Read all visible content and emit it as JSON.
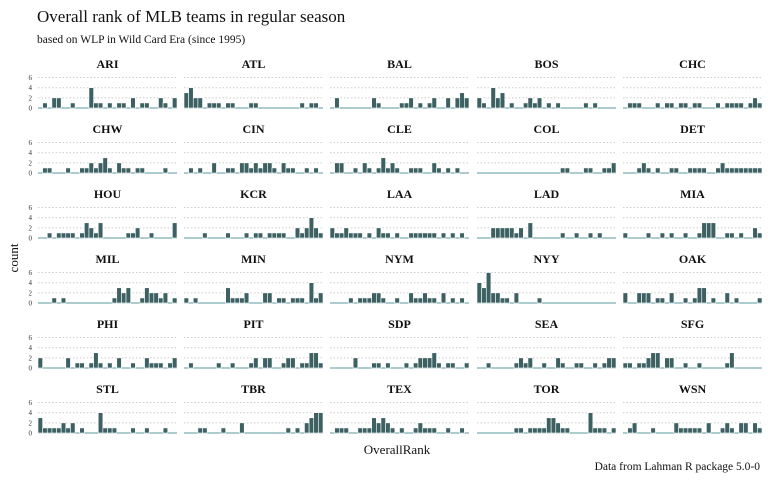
{
  "chart_data": {
    "type": "bar",
    "title": "Overall rank of MLB teams in regular season",
    "subtitle": "based on WLP in Wild Card Era (since 1995)",
    "xlabel": "OverallRank",
    "ylabel": "count",
    "caption": "Data from Lahman R package 5.0-0",
    "x_range": [
      1,
      30
    ],
    "y_ticks": [
      0,
      2,
      4,
      6
    ],
    "ylim": [
      0,
      6.5
    ],
    "grid": "horizontal dotted",
    "colors": {
      "bar": "#3d6163",
      "bar_edge": "#ffffff",
      "baseline": "#5b9aa0",
      "grid": "#cccccc"
    },
    "facets": [
      {
        "team": "ARI",
        "counts": [
          0,
          1,
          0,
          2,
          2,
          0,
          0,
          1,
          0,
          0,
          0,
          4,
          1,
          1,
          0,
          1,
          0,
          1,
          1,
          0,
          2,
          0,
          1,
          1,
          0,
          0,
          2,
          1,
          0,
          2
        ]
      },
      {
        "team": "ATL",
        "counts": [
          3,
          4,
          2,
          2,
          0,
          1,
          1,
          1,
          0,
          1,
          1,
          0,
          0,
          0,
          1,
          1,
          0,
          0,
          0,
          0,
          0,
          0,
          0,
          0,
          0,
          1,
          0,
          1,
          1,
          0
        ]
      },
      {
        "team": "BAL",
        "counts": [
          0,
          2,
          0,
          0,
          0,
          0,
          0,
          0,
          0,
          2,
          1,
          0,
          0,
          0,
          0,
          1,
          1,
          2,
          0,
          1,
          0,
          1,
          2,
          0,
          0,
          2,
          0,
          2,
          3,
          2
        ]
      },
      {
        "team": "BOS",
        "counts": [
          2,
          1,
          0,
          4,
          2,
          3,
          0,
          1,
          0,
          0,
          1,
          2,
          1,
          2,
          0,
          1,
          0,
          1,
          0,
          0,
          0,
          0,
          0,
          1,
          0,
          1,
          0,
          0,
          0,
          0
        ]
      },
      {
        "team": "CHC",
        "counts": [
          0,
          1,
          1,
          1,
          0,
          0,
          0,
          1,
          0,
          1,
          1,
          0,
          1,
          1,
          0,
          1,
          1,
          0,
          0,
          0,
          1,
          0,
          1,
          1,
          1,
          1,
          0,
          1,
          2,
          1
        ]
      },
      {
        "team": "CHW",
        "counts": [
          0,
          1,
          1,
          0,
          0,
          0,
          1,
          0,
          0,
          1,
          1,
          2,
          1,
          2,
          3,
          1,
          0,
          2,
          1,
          1,
          0,
          1,
          1,
          0,
          0,
          0,
          0,
          1,
          0,
          0
        ]
      },
      {
        "team": "CIN",
        "counts": [
          0,
          1,
          0,
          1,
          0,
          0,
          2,
          0,
          0,
          1,
          1,
          0,
          2,
          2,
          1,
          2,
          1,
          2,
          2,
          1,
          0,
          2,
          1,
          1,
          0,
          0,
          1,
          0,
          1,
          0
        ]
      },
      {
        "team": "CLE",
        "counts": [
          0,
          2,
          2,
          0,
          0,
          1,
          0,
          2,
          1,
          0,
          1,
          3,
          1,
          2,
          1,
          0,
          0,
          1,
          1,
          1,
          0,
          0,
          2,
          1,
          0,
          1,
          0,
          1,
          0,
          0
        ]
      },
      {
        "team": "COL",
        "counts": [
          0,
          0,
          0,
          0,
          0,
          0,
          0,
          0,
          0,
          0,
          0,
          0,
          0,
          0,
          0,
          0,
          0,
          0,
          1,
          1,
          0,
          0,
          0,
          1,
          1,
          0,
          0,
          1,
          1,
          2
        ]
      },
      {
        "team": "DET",
        "counts": [
          0,
          0,
          0,
          1,
          2,
          1,
          0,
          1,
          0,
          0,
          1,
          1,
          0,
          0,
          1,
          1,
          1,
          1,
          0,
          0,
          1,
          2,
          1,
          1,
          1,
          1,
          1,
          1,
          1,
          1
        ]
      },
      {
        "team": "HOU",
        "counts": [
          0,
          0,
          1,
          0,
          1,
          1,
          1,
          1,
          0,
          1,
          3,
          2,
          1,
          3,
          0,
          0,
          0,
          0,
          0,
          1,
          1,
          2,
          0,
          0,
          1,
          0,
          0,
          0,
          0,
          3
        ]
      },
      {
        "team": "KCR",
        "counts": [
          0,
          0,
          0,
          0,
          1,
          0,
          0,
          0,
          0,
          1,
          0,
          0,
          0,
          1,
          0,
          1,
          1,
          0,
          1,
          1,
          1,
          1,
          0,
          0,
          2,
          1,
          2,
          4,
          2,
          1
        ]
      },
      {
        "team": "LAA",
        "counts": [
          2,
          1,
          1,
          2,
          1,
          1,
          1,
          0,
          1,
          0,
          2,
          1,
          1,
          0,
          1,
          0,
          0,
          1,
          1,
          1,
          1,
          1,
          1,
          0,
          1,
          0,
          1,
          0,
          1,
          0
        ]
      },
      {
        "team": "LAD",
        "counts": [
          0,
          0,
          0,
          2,
          2,
          2,
          2,
          2,
          1,
          2,
          0,
          3,
          0,
          0,
          0,
          0,
          0,
          0,
          1,
          0,
          0,
          1,
          0,
          0,
          1,
          0,
          1,
          0,
          0,
          0
        ]
      },
      {
        "team": "MIA",
        "counts": [
          1,
          0,
          0,
          0,
          0,
          1,
          0,
          0,
          1,
          0,
          1,
          0,
          0,
          1,
          0,
          0,
          1,
          3,
          3,
          3,
          0,
          0,
          1,
          1,
          0,
          1,
          0,
          0,
          2,
          1
        ]
      },
      {
        "team": "MIL",
        "counts": [
          0,
          0,
          0,
          1,
          0,
          1,
          0,
          0,
          0,
          0,
          0,
          0,
          0,
          0,
          0,
          0,
          1,
          3,
          2,
          3,
          0,
          0,
          1,
          3,
          2,
          2,
          1,
          2,
          0,
          1
        ]
      },
      {
        "team": "MIN",
        "counts": [
          1,
          0,
          1,
          0,
          0,
          0,
          0,
          0,
          0,
          3,
          1,
          1,
          1,
          2,
          0,
          0,
          0,
          2,
          2,
          0,
          1,
          1,
          0,
          1,
          1,
          1,
          0,
          4,
          1,
          2
        ]
      },
      {
        "team": "NYM",
        "counts": [
          0,
          0,
          0,
          0,
          1,
          0,
          1,
          1,
          1,
          2,
          2,
          1,
          0,
          0,
          1,
          0,
          0,
          2,
          1,
          1,
          2,
          1,
          1,
          0,
          2,
          0,
          1,
          0,
          1,
          0
        ]
      },
      {
        "team": "NYY",
        "counts": [
          4,
          3,
          6,
          2,
          2,
          1,
          1,
          0,
          2,
          0,
          0,
          0,
          0,
          1,
          0,
          0,
          0,
          0,
          0,
          0,
          0,
          0,
          0,
          0,
          0,
          0,
          0,
          0,
          0,
          0
        ]
      },
      {
        "team": "OAK",
        "counts": [
          2,
          0,
          0,
          2,
          2,
          2,
          0,
          1,
          1,
          0,
          2,
          0,
          0,
          1,
          0,
          1,
          3,
          3,
          0,
          1,
          0,
          0,
          2,
          0,
          1,
          0,
          0,
          0,
          0,
          1
        ]
      },
      {
        "team": "PHI",
        "counts": [
          2,
          0,
          0,
          0,
          0,
          0,
          2,
          0,
          1,
          1,
          0,
          1,
          3,
          1,
          0,
          1,
          0,
          2,
          0,
          0,
          1,
          0,
          0,
          2,
          1,
          1,
          1,
          0,
          1,
          2
        ]
      },
      {
        "team": "PIT",
        "counts": [
          0,
          1,
          0,
          0,
          0,
          0,
          0,
          1,
          0,
          0,
          1,
          0,
          0,
          0,
          1,
          2,
          0,
          2,
          2,
          0,
          0,
          1,
          2,
          2,
          0,
          1,
          1,
          3,
          3,
          1
        ]
      },
      {
        "team": "SDP",
        "counts": [
          0,
          0,
          0,
          0,
          0,
          2,
          0,
          0,
          0,
          1,
          1,
          0,
          1,
          0,
          0,
          0,
          1,
          0,
          1,
          2,
          2,
          2,
          3,
          1,
          0,
          1,
          1,
          0,
          0,
          1
        ]
      },
      {
        "team": "SEA",
        "counts": [
          0,
          0,
          1,
          0,
          0,
          0,
          0,
          0,
          1,
          2,
          1,
          2,
          0,
          0,
          1,
          0,
          0,
          2,
          1,
          0,
          0,
          1,
          1,
          0,
          0,
          1,
          0,
          1,
          2,
          2
        ]
      },
      {
        "team": "SFG",
        "counts": [
          1,
          1,
          0,
          1,
          1,
          2,
          3,
          3,
          0,
          2,
          2,
          0,
          0,
          1,
          0,
          0,
          1,
          0,
          0,
          0,
          0,
          0,
          1,
          3,
          0,
          0,
          0,
          0,
          0,
          0
        ]
      },
      {
        "team": "STL",
        "counts": [
          3,
          1,
          1,
          1,
          1,
          2,
          1,
          2,
          0,
          1,
          0,
          0,
          0,
          4,
          1,
          1,
          1,
          0,
          0,
          0,
          1,
          0,
          0,
          1,
          0,
          0,
          0,
          1,
          0,
          0
        ]
      },
      {
        "team": "TBR",
        "counts": [
          0,
          0,
          0,
          1,
          1,
          0,
          0,
          0,
          1,
          0,
          0,
          0,
          2,
          0,
          0,
          0,
          0,
          0,
          0,
          0,
          0,
          0,
          1,
          0,
          1,
          0,
          2,
          3,
          4,
          4
        ]
      },
      {
        "team": "TEX",
        "counts": [
          0,
          1,
          1,
          1,
          0,
          0,
          1,
          1,
          1,
          3,
          2,
          3,
          2,
          1,
          0,
          1,
          0,
          0,
          1,
          2,
          1,
          1,
          1,
          0,
          0,
          1,
          0,
          0,
          1,
          0
        ]
      },
      {
        "team": "TOR",
        "counts": [
          0,
          0,
          0,
          0,
          0,
          0,
          0,
          0,
          1,
          1,
          0,
          1,
          1,
          1,
          1,
          3,
          3,
          2,
          1,
          1,
          0,
          0,
          0,
          0,
          4,
          1,
          1,
          1,
          0,
          1
        ]
      },
      {
        "team": "WSN",
        "counts": [
          0,
          1,
          2,
          0,
          0,
          0,
          1,
          0,
          0,
          0,
          0,
          2,
          1,
          1,
          1,
          1,
          1,
          0,
          2,
          0,
          0,
          1,
          2,
          1,
          0,
          2,
          2,
          0,
          2,
          1
        ]
      }
    ]
  }
}
